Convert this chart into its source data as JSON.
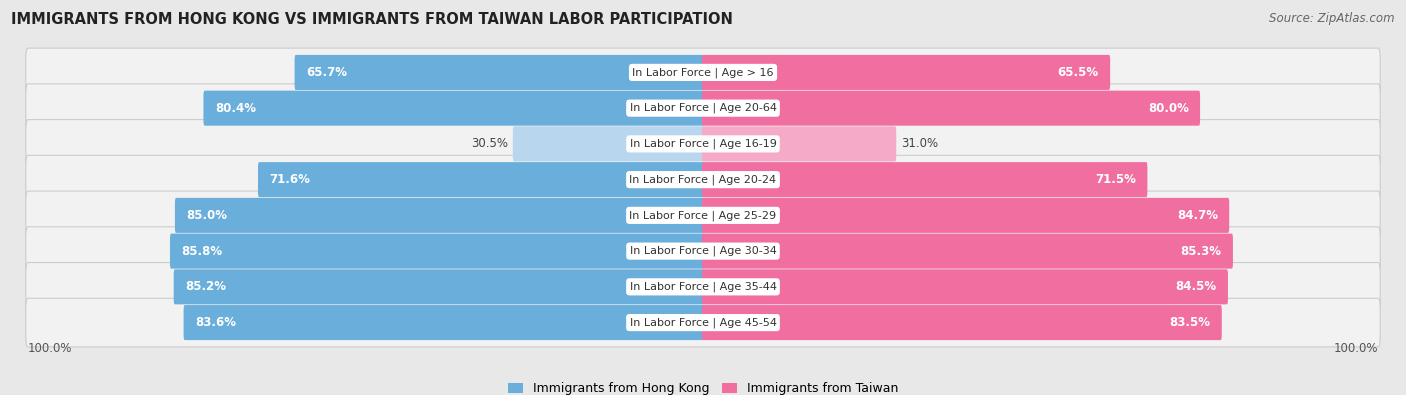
{
  "title": "IMMIGRANTS FROM HONG KONG VS IMMIGRANTS FROM TAIWAN LABOR PARTICIPATION",
  "source": "Source: ZipAtlas.com",
  "categories": [
    "In Labor Force | Age > 16",
    "In Labor Force | Age 20-64",
    "In Labor Force | Age 16-19",
    "In Labor Force | Age 20-24",
    "In Labor Force | Age 25-29",
    "In Labor Force | Age 30-34",
    "In Labor Force | Age 35-44",
    "In Labor Force | Age 45-54"
  ],
  "hk_values": [
    65.7,
    80.4,
    30.5,
    71.6,
    85.0,
    85.8,
    85.2,
    83.6
  ],
  "tw_values": [
    65.5,
    80.0,
    31.0,
    71.5,
    84.7,
    85.3,
    84.5,
    83.5
  ],
  "hk_color": "#6aaedb",
  "hk_color_light": "#b8d6ee",
  "tw_color": "#f06fa0",
  "tw_color_light": "#f5aac7",
  "bg_color": "#e8e8e8",
  "row_bg_color": "#f2f2f2",
  "legend_hk": "Immigrants from Hong Kong",
  "legend_tw": "Immigrants from Taiwan",
  "label_fontsize": 8.5,
  "cat_fontsize": 8.0,
  "threshold": 50
}
